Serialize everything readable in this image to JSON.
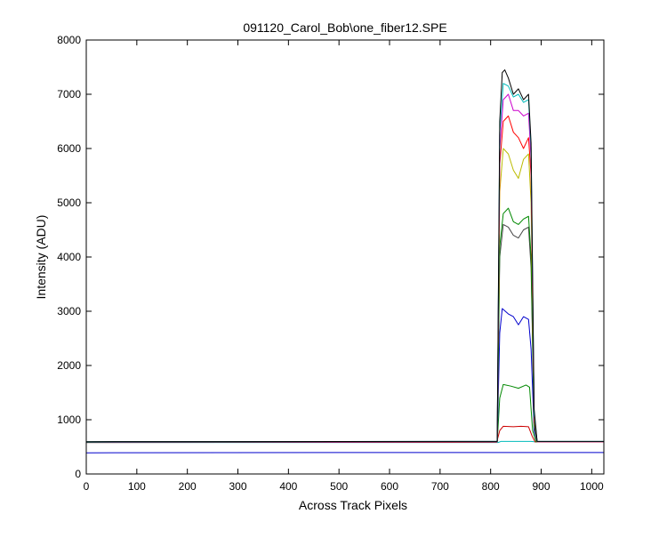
{
  "chart_data": {
    "type": "line",
    "title": "091120_Carol_Bob\\one_fiber12.SPE",
    "xlabel": "Across Track Pixels",
    "ylabel": "Intensity (ADU)",
    "xlim": [
      0,
      1024
    ],
    "ylim": [
      0,
      8000
    ],
    "xticks": [
      "0",
      "100",
      "200",
      "300",
      "400",
      "500",
      "600",
      "700",
      "800",
      "900",
      "1000"
    ],
    "yticks": [
      "0",
      "1000",
      "2000",
      "3000",
      "4000",
      "5000",
      "6000",
      "7000",
      "8000"
    ],
    "grid": false,
    "legend": "none",
    "series": [
      {
        "color": "#0000cc",
        "values": [
          {
            "x": 0,
            "y": 390
          },
          {
            "x": 512,
            "y": 395
          },
          {
            "x": 1024,
            "y": 395
          }
        ]
      },
      {
        "color": "#00bbbb",
        "values": [
          {
            "x": 0,
            "y": 580
          },
          {
            "x": 815,
            "y": 580
          },
          {
            "x": 820,
            "y": 600
          },
          {
            "x": 830,
            "y": 600
          },
          {
            "x": 880,
            "y": 600
          },
          {
            "x": 890,
            "y": 590
          },
          {
            "x": 1024,
            "y": 590
          }
        ]
      },
      {
        "color": "#cc0000",
        "values": [
          {
            "x": 0,
            "y": 580
          },
          {
            "x": 812,
            "y": 585
          },
          {
            "x": 818,
            "y": 800
          },
          {
            "x": 825,
            "y": 880
          },
          {
            "x": 845,
            "y": 870
          },
          {
            "x": 860,
            "y": 880
          },
          {
            "x": 875,
            "y": 870
          },
          {
            "x": 882,
            "y": 700
          },
          {
            "x": 888,
            "y": 590
          },
          {
            "x": 1024,
            "y": 590
          }
        ]
      },
      {
        "color": "#008800",
        "values": [
          {
            "x": 0,
            "y": 585
          },
          {
            "x": 813,
            "y": 590
          },
          {
            "x": 818,
            "y": 1400
          },
          {
            "x": 825,
            "y": 1650
          },
          {
            "x": 840,
            "y": 1620
          },
          {
            "x": 855,
            "y": 1580
          },
          {
            "x": 870,
            "y": 1640
          },
          {
            "x": 877,
            "y": 1600
          },
          {
            "x": 883,
            "y": 800
          },
          {
            "x": 890,
            "y": 590
          },
          {
            "x": 1024,
            "y": 590
          }
        ]
      },
      {
        "color": "#0000cc",
        "values": [
          {
            "x": 0,
            "y": 585
          },
          {
            "x": 813,
            "y": 590
          },
          {
            "x": 818,
            "y": 2600
          },
          {
            "x": 823,
            "y": 3050
          },
          {
            "x": 835,
            "y": 2950
          },
          {
            "x": 845,
            "y": 2900
          },
          {
            "x": 855,
            "y": 2750
          },
          {
            "x": 865,
            "y": 2900
          },
          {
            "x": 875,
            "y": 2850
          },
          {
            "x": 880,
            "y": 2300
          },
          {
            "x": 886,
            "y": 800
          },
          {
            "x": 892,
            "y": 590
          },
          {
            "x": 1024,
            "y": 590
          }
        ]
      },
      {
        "color": "#444444",
        "values": [
          {
            "x": 0,
            "y": 585
          },
          {
            "x": 813,
            "y": 590
          },
          {
            "x": 818,
            "y": 4000
          },
          {
            "x": 825,
            "y": 4600
          },
          {
            "x": 835,
            "y": 4550
          },
          {
            "x": 845,
            "y": 4400
          },
          {
            "x": 855,
            "y": 4350
          },
          {
            "x": 865,
            "y": 4500
          },
          {
            "x": 875,
            "y": 4550
          },
          {
            "x": 880,
            "y": 3800
          },
          {
            "x": 886,
            "y": 900
          },
          {
            "x": 892,
            "y": 590
          },
          {
            "x": 1024,
            "y": 590
          }
        ]
      },
      {
        "color": "#008800",
        "values": [
          {
            "x": 0,
            "y": 585
          },
          {
            "x": 813,
            "y": 590
          },
          {
            "x": 818,
            "y": 4200
          },
          {
            "x": 825,
            "y": 4800
          },
          {
            "x": 835,
            "y": 4900
          },
          {
            "x": 845,
            "y": 4650
          },
          {
            "x": 855,
            "y": 4600
          },
          {
            "x": 865,
            "y": 4700
          },
          {
            "x": 875,
            "y": 4750
          },
          {
            "x": 880,
            "y": 4000
          },
          {
            "x": 886,
            "y": 900
          },
          {
            "x": 892,
            "y": 590
          },
          {
            "x": 1024,
            "y": 590
          }
        ]
      },
      {
        "color": "#bbbb00",
        "values": [
          {
            "x": 0,
            "y": 590
          },
          {
            "x": 813,
            "y": 595
          },
          {
            "x": 818,
            "y": 5200
          },
          {
            "x": 825,
            "y": 6000
          },
          {
            "x": 835,
            "y": 5900
          },
          {
            "x": 845,
            "y": 5600
          },
          {
            "x": 855,
            "y": 5450
          },
          {
            "x": 865,
            "y": 5800
          },
          {
            "x": 875,
            "y": 5900
          },
          {
            "x": 880,
            "y": 5000
          },
          {
            "x": 886,
            "y": 1000
          },
          {
            "x": 892,
            "y": 595
          },
          {
            "x": 1024,
            "y": 595
          }
        ]
      },
      {
        "color": "#ff0000",
        "values": [
          {
            "x": 0,
            "y": 590
          },
          {
            "x": 813,
            "y": 595
          },
          {
            "x": 818,
            "y": 5700
          },
          {
            "x": 825,
            "y": 6500
          },
          {
            "x": 835,
            "y": 6600
          },
          {
            "x": 845,
            "y": 6300
          },
          {
            "x": 855,
            "y": 6200
          },
          {
            "x": 865,
            "y": 6000
          },
          {
            "x": 875,
            "y": 6200
          },
          {
            "x": 880,
            "y": 5500
          },
          {
            "x": 886,
            "y": 1000
          },
          {
            "x": 892,
            "y": 595
          },
          {
            "x": 1024,
            "y": 595
          }
        ]
      },
      {
        "color": "#cc00cc",
        "values": [
          {
            "x": 0,
            "y": 590
          },
          {
            "x": 813,
            "y": 595
          },
          {
            "x": 818,
            "y": 6000
          },
          {
            "x": 825,
            "y": 6900
          },
          {
            "x": 835,
            "y": 7000
          },
          {
            "x": 845,
            "y": 6700
          },
          {
            "x": 855,
            "y": 6700
          },
          {
            "x": 865,
            "y": 6600
          },
          {
            "x": 875,
            "y": 6650
          },
          {
            "x": 880,
            "y": 5800
          },
          {
            "x": 886,
            "y": 1100
          },
          {
            "x": 892,
            "y": 595
          },
          {
            "x": 1024,
            "y": 595
          }
        ]
      },
      {
        "color": "#00bbbb",
        "values": [
          {
            "x": 0,
            "y": 595
          },
          {
            "x": 813,
            "y": 600
          },
          {
            "x": 818,
            "y": 6300
          },
          {
            "x": 825,
            "y": 7200
          },
          {
            "x": 835,
            "y": 7150
          },
          {
            "x": 845,
            "y": 6950
          },
          {
            "x": 855,
            "y": 7000
          },
          {
            "x": 865,
            "y": 6850
          },
          {
            "x": 875,
            "y": 6900
          },
          {
            "x": 880,
            "y": 6000
          },
          {
            "x": 886,
            "y": 1100
          },
          {
            "x": 892,
            "y": 600
          },
          {
            "x": 1024,
            "y": 600
          }
        ]
      },
      {
        "color": "#000000",
        "values": [
          {
            "x": 0,
            "y": 595
          },
          {
            "x": 813,
            "y": 600
          },
          {
            "x": 818,
            "y": 6500
          },
          {
            "x": 823,
            "y": 7400
          },
          {
            "x": 828,
            "y": 7450
          },
          {
            "x": 835,
            "y": 7300
          },
          {
            "x": 845,
            "y": 7000
          },
          {
            "x": 855,
            "y": 7100
          },
          {
            "x": 865,
            "y": 6900
          },
          {
            "x": 875,
            "y": 7000
          },
          {
            "x": 880,
            "y": 6100
          },
          {
            "x": 886,
            "y": 1200
          },
          {
            "x": 892,
            "y": 600
          },
          {
            "x": 1024,
            "y": 600
          }
        ]
      }
    ]
  }
}
